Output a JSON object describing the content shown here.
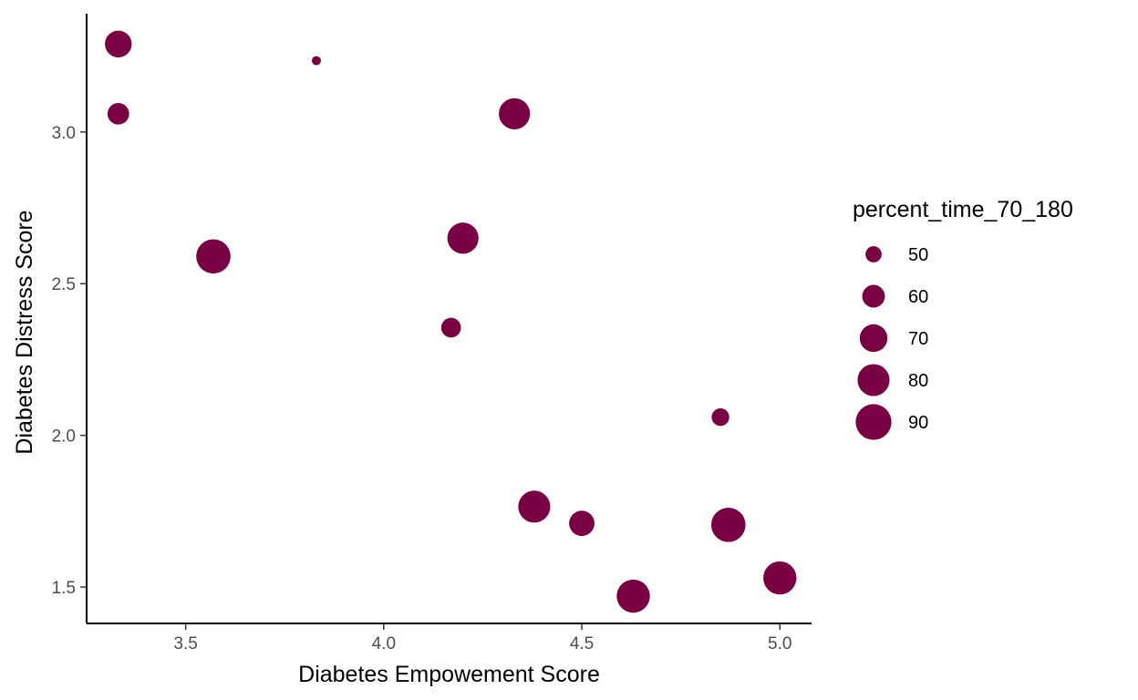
{
  "chart_data": {
    "type": "scatter",
    "xlabel": "Diabetes Empowement Score",
    "ylabel": "Diabetes Distress Score",
    "xlim": [
      3.25,
      5.08
    ],
    "ylim": [
      1.38,
      3.39
    ],
    "x_ticks": [
      3.5,
      4.0,
      4.5,
      5.0
    ],
    "x_tick_labels": [
      "3.5",
      "4.0",
      "4.5",
      "5.0"
    ],
    "y_ticks": [
      1.5,
      2.0,
      2.5,
      3.0
    ],
    "y_tick_labels": [
      "1.5",
      "2.0",
      "2.5",
      "3.0"
    ],
    "grid": false,
    "point_color": "#7a0044",
    "size_variable": "percent_time_70_180",
    "size_domain": [
      43,
      92
    ],
    "points": [
      {
        "x": 3.33,
        "y": 3.29,
        "size": 68
      },
      {
        "x": 3.83,
        "y": 3.235,
        "size": 43
      },
      {
        "x": 3.33,
        "y": 3.06,
        "size": 58
      },
      {
        "x": 4.33,
        "y": 3.06,
        "size": 78
      },
      {
        "x": 3.57,
        "y": 2.59,
        "size": 86
      },
      {
        "x": 4.2,
        "y": 2.65,
        "size": 78
      },
      {
        "x": 4.17,
        "y": 2.355,
        "size": 55
      },
      {
        "x": 4.85,
        "y": 2.06,
        "size": 52
      },
      {
        "x": 4.38,
        "y": 1.765,
        "size": 80
      },
      {
        "x": 4.5,
        "y": 1.71,
        "size": 65
      },
      {
        "x": 4.87,
        "y": 1.705,
        "size": 86
      },
      {
        "x": 4.63,
        "y": 1.47,
        "size": 83
      },
      {
        "x": 5.0,
        "y": 1.53,
        "size": 83
      }
    ],
    "legend": {
      "title": "percent_time_70_180",
      "position": "right",
      "entries": [
        {
          "label": "50",
          "value": 50
        },
        {
          "label": "60",
          "value": 60
        },
        {
          "label": "70",
          "value": 70
        },
        {
          "label": "80",
          "value": 80
        },
        {
          "label": "90",
          "value": 90
        }
      ]
    }
  }
}
